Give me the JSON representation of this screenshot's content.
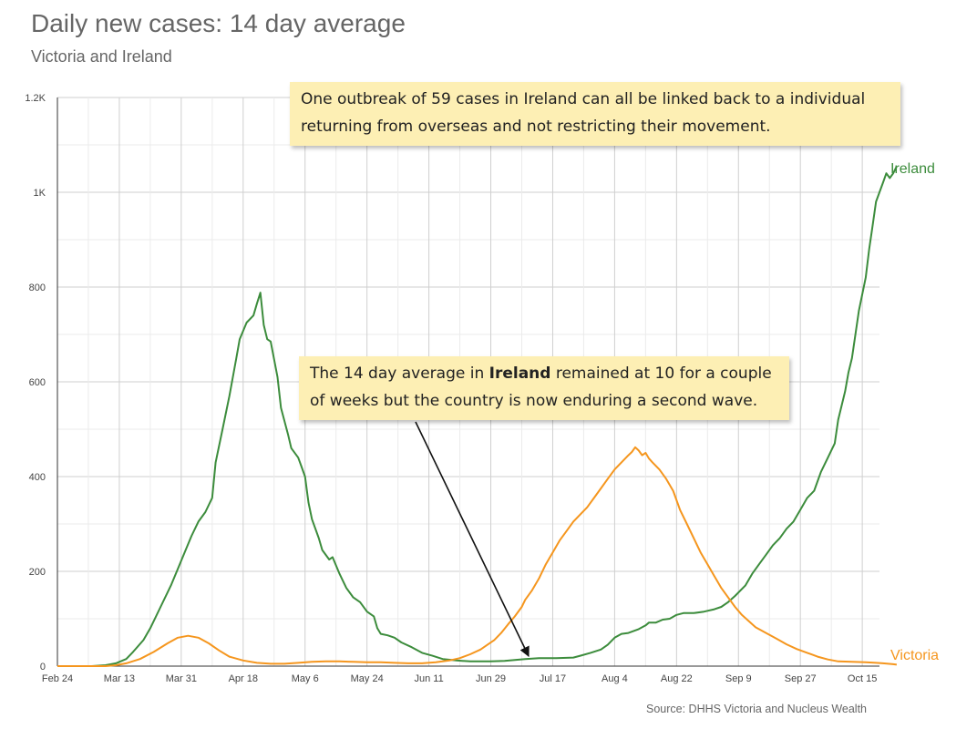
{
  "title": "Daily new cases: 14 day average",
  "subtitle": "Victoria and Ireland",
  "source": "Source: DHHS Victoria and Nucleus Wealth",
  "annotations": {
    "note1": "One outbreak of 59 cases in Ireland can all be linked back to a individual returning from overseas and not restricting their movement.",
    "note2_part1": "The 14 day average in ",
    "note2_bold": "Ireland",
    "note2_part2": " remained at 10 for a couple of weeks but the country is now enduring a second wave."
  },
  "chart_data": {
    "type": "line",
    "xlabel": "",
    "ylabel": "",
    "grid": true,
    "ylim": [
      0,
      1200
    ],
    "y_ticks": [
      0,
      200,
      400,
      600,
      800,
      1000,
      1200
    ],
    "y_tick_labels": [
      "0",
      "200",
      "400",
      "600",
      "800",
      "1K",
      "1.2K"
    ],
    "x_ticks": [
      "Feb 24",
      "Mar 13",
      "Mar 31",
      "Apr 18",
      "May 6",
      "May 24",
      "Jun 11",
      "Jun 29",
      "Jul 17",
      "Aug 4",
      "Aug 22",
      "Sep 9",
      "Sep 27",
      "Oct 15"
    ],
    "x_domain_days": [
      0,
      239
    ],
    "colors": {
      "Ireland": "#3c8c3c",
      "Victoria": "#f5961e",
      "arrow": "#111111"
    },
    "series": [
      {
        "name": "Ireland",
        "points": [
          [
            0,
            0
          ],
          [
            10,
            0
          ],
          [
            14,
            2
          ],
          [
            17,
            6
          ],
          [
            20,
            15
          ],
          [
            22,
            30
          ],
          [
            25,
            55
          ],
          [
            27,
            80
          ],
          [
            30,
            125
          ],
          [
            33,
            170
          ],
          [
            35,
            205
          ],
          [
            37,
            240
          ],
          [
            39,
            275
          ],
          [
            41,
            305
          ],
          [
            43,
            325
          ],
          [
            45,
            355
          ],
          [
            46,
            430
          ],
          [
            48,
            500
          ],
          [
            50,
            570
          ],
          [
            52,
            650
          ],
          [
            53,
            690
          ],
          [
            55,
            725
          ],
          [
            57,
            740
          ],
          [
            58,
            765
          ],
          [
            59,
            788
          ],
          [
            60,
            720
          ],
          [
            61,
            690
          ],
          [
            62,
            685
          ],
          [
            64,
            610
          ],
          [
            65,
            545
          ],
          [
            67,
            490
          ],
          [
            68,
            460
          ],
          [
            70,
            440
          ],
          [
            71,
            420
          ],
          [
            72,
            400
          ],
          [
            73,
            345
          ],
          [
            74,
            310
          ],
          [
            76,
            270
          ],
          [
            77,
            245
          ],
          [
            79,
            225
          ],
          [
            80,
            230
          ],
          [
            82,
            195
          ],
          [
            84,
            165
          ],
          [
            86,
            145
          ],
          [
            88,
            135
          ],
          [
            90,
            115
          ],
          [
            92,
            105
          ],
          [
            93,
            80
          ],
          [
            94,
            68
          ],
          [
            96,
            65
          ],
          [
            98,
            60
          ],
          [
            100,
            50
          ],
          [
            103,
            40
          ],
          [
            106,
            28
          ],
          [
            109,
            22
          ],
          [
            112,
            15
          ],
          [
            116,
            12
          ],
          [
            120,
            10
          ],
          [
            126,
            10
          ],
          [
            130,
            11
          ],
          [
            136,
            15
          ],
          [
            140,
            17
          ],
          [
            145,
            17
          ],
          [
            150,
            18
          ],
          [
            152,
            22
          ],
          [
            155,
            28
          ],
          [
            158,
            35
          ],
          [
            160,
            45
          ],
          [
            162,
            60
          ],
          [
            164,
            68
          ],
          [
            166,
            70
          ],
          [
            169,
            78
          ],
          [
            171,
            86
          ],
          [
            172,
            92
          ],
          [
            174,
            92
          ],
          [
            176,
            98
          ],
          [
            178,
            100
          ],
          [
            180,
            108
          ],
          [
            182,
            112
          ],
          [
            185,
            112
          ],
          [
            188,
            115
          ],
          [
            191,
            120
          ],
          [
            193,
            125
          ],
          [
            195,
            135
          ],
          [
            197,
            148
          ],
          [
            200,
            170
          ],
          [
            202,
            195
          ],
          [
            204,
            215
          ],
          [
            206,
            235
          ],
          [
            208,
            255
          ],
          [
            210,
            270
          ],
          [
            212,
            290
          ],
          [
            214,
            305
          ],
          [
            216,
            330
          ],
          [
            218,
            355
          ],
          [
            220,
            370
          ],
          [
            222,
            410
          ],
          [
            224,
            440
          ],
          [
            226,
            470
          ],
          [
            227,
            520
          ],
          [
            229,
            580
          ],
          [
            230,
            620
          ],
          [
            231,
            650
          ],
          [
            232,
            700
          ],
          [
            233,
            750
          ],
          [
            235,
            820
          ],
          [
            236,
            880
          ],
          [
            237,
            930
          ],
          [
            238,
            980
          ],
          [
            239,
            1000
          ],
          [
            240,
            1020
          ],
          [
            241,
            1040
          ],
          [
            242,
            1030
          ],
          [
            243,
            1040
          ],
          [
            244,
            1055
          ]
        ]
      },
      {
        "name": "Victoria",
        "points": [
          [
            0,
            0
          ],
          [
            14,
            0
          ],
          [
            17,
            2
          ],
          [
            20,
            6
          ],
          [
            24,
            15
          ],
          [
            28,
            30
          ],
          [
            32,
            48
          ],
          [
            35,
            60
          ],
          [
            38,
            64
          ],
          [
            41,
            60
          ],
          [
            44,
            48
          ],
          [
            47,
            33
          ],
          [
            50,
            20
          ],
          [
            54,
            12
          ],
          [
            58,
            7
          ],
          [
            62,
            5
          ],
          [
            66,
            5
          ],
          [
            70,
            7
          ],
          [
            74,
            9
          ],
          [
            78,
            10
          ],
          [
            82,
            10
          ],
          [
            86,
            9
          ],
          [
            90,
            8
          ],
          [
            94,
            8
          ],
          [
            98,
            7
          ],
          [
            102,
            6
          ],
          [
            106,
            6
          ],
          [
            110,
            8
          ],
          [
            114,
            12
          ],
          [
            117,
            17
          ],
          [
            120,
            25
          ],
          [
            123,
            35
          ],
          [
            125,
            45
          ],
          [
            127,
            55
          ],
          [
            129,
            70
          ],
          [
            131,
            88
          ],
          [
            133,
            105
          ],
          [
            135,
            125
          ],
          [
            136,
            140
          ],
          [
            138,
            160
          ],
          [
            140,
            185
          ],
          [
            142,
            215
          ],
          [
            144,
            240
          ],
          [
            146,
            265
          ],
          [
            148,
            285
          ],
          [
            150,
            305
          ],
          [
            152,
            320
          ],
          [
            154,
            335
          ],
          [
            156,
            355
          ],
          [
            158,
            375
          ],
          [
            160,
            395
          ],
          [
            162,
            415
          ],
          [
            164,
            430
          ],
          [
            166,
            445
          ],
          [
            167,
            452
          ],
          [
            168,
            462
          ],
          [
            169,
            455
          ],
          [
            170,
            445
          ],
          [
            171,
            450
          ],
          [
            172,
            438
          ],
          [
            173,
            430
          ],
          [
            175,
            415
          ],
          [
            177,
            395
          ],
          [
            179,
            370
          ],
          [
            181,
            330
          ],
          [
            183,
            300
          ],
          [
            185,
            270
          ],
          [
            187,
            240
          ],
          [
            189,
            215
          ],
          [
            191,
            190
          ],
          [
            193,
            165
          ],
          [
            195,
            145
          ],
          [
            197,
            125
          ],
          [
            199,
            108
          ],
          [
            201,
            95
          ],
          [
            203,
            82
          ],
          [
            206,
            70
          ],
          [
            209,
            58
          ],
          [
            212,
            46
          ],
          [
            215,
            36
          ],
          [
            218,
            28
          ],
          [
            221,
            20
          ],
          [
            224,
            14
          ],
          [
            227,
            10
          ],
          [
            231,
            9
          ],
          [
            235,
            8
          ],
          [
            238,
            7
          ],
          [
            240,
            6
          ],
          [
            243,
            4
          ],
          [
            244,
            3
          ]
        ]
      }
    ]
  }
}
